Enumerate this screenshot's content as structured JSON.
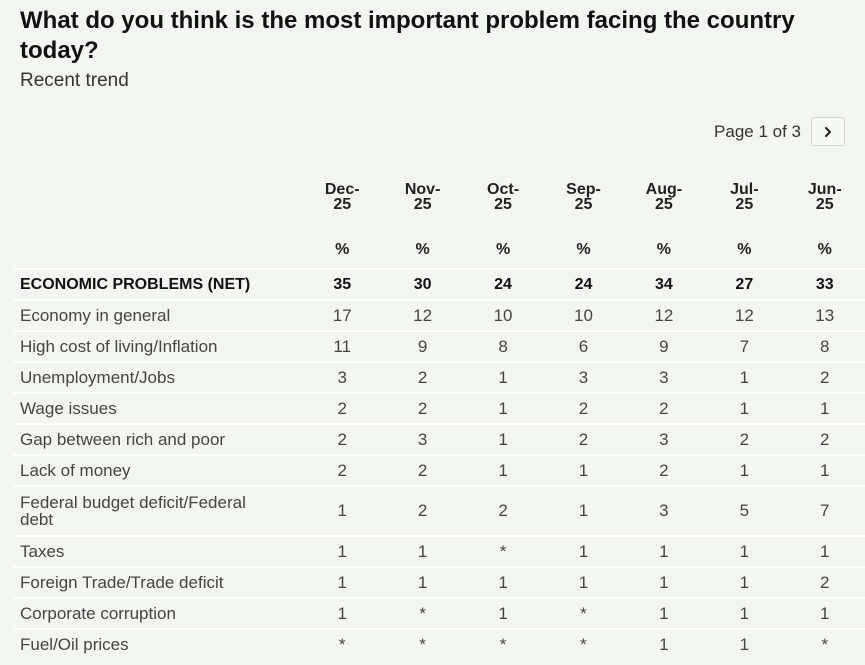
{
  "header": {
    "title": "What do you think is the most important problem facing the country today?",
    "subtitle": "Recent trend"
  },
  "pager": {
    "text": "Page 1 of 3",
    "next_icon": "chevron-right-icon"
  },
  "table": {
    "columns": [
      {
        "line1": "Dec-",
        "line2": "25"
      },
      {
        "line1": "Nov-",
        "line2": "25"
      },
      {
        "line1": "Oct-",
        "line2": "25"
      },
      {
        "line1": "Sep-",
        "line2": "25"
      },
      {
        "line1": "Aug-",
        "line2": "25"
      },
      {
        "line1": "Jul-",
        "line2": "25"
      },
      {
        "line1": "Jun-",
        "line2": "25"
      }
    ],
    "unit": "%",
    "rows": [
      {
        "label": "ECONOMIC PROBLEMS (NET)",
        "values": [
          "35",
          "30",
          "24",
          "24",
          "34",
          "27",
          "33"
        ],
        "net": true
      },
      {
        "label": "Economy in general",
        "values": [
          "17",
          "12",
          "10",
          "10",
          "12",
          "12",
          "13"
        ]
      },
      {
        "label": "High cost of living/Inflation",
        "values": [
          "11",
          "9",
          "8",
          "6",
          "9",
          "7",
          "8"
        ]
      },
      {
        "label": "Unemployment/Jobs",
        "values": [
          "3",
          "2",
          "1",
          "3",
          "3",
          "1",
          "2"
        ]
      },
      {
        "label": "Wage issues",
        "values": [
          "2",
          "2",
          "1",
          "2",
          "2",
          "1",
          "1"
        ]
      },
      {
        "label": "Gap between rich and poor",
        "values": [
          "2",
          "3",
          "1",
          "2",
          "3",
          "2",
          "2"
        ]
      },
      {
        "label": "Lack of money",
        "values": [
          "2",
          "2",
          "1",
          "1",
          "2",
          "1",
          "1"
        ]
      },
      {
        "label": "Federal budget deficit/Federal debt",
        "values": [
          "1",
          "2",
          "2",
          "1",
          "3",
          "5",
          "7"
        ],
        "tall": true
      },
      {
        "label": "Taxes",
        "values": [
          "1",
          "1",
          "*",
          "1",
          "1",
          "1",
          "1"
        ]
      },
      {
        "label": "Foreign Trade/Trade deficit",
        "values": [
          "1",
          "1",
          "1",
          "1",
          "1",
          "1",
          "2"
        ]
      },
      {
        "label": "Corporate corruption",
        "values": [
          "1",
          "*",
          "1",
          "*",
          "1",
          "1",
          "1"
        ]
      },
      {
        "label": "Fuel/Oil prices",
        "values": [
          "*",
          "*",
          "*",
          "*",
          "1",
          "1",
          "*"
        ]
      }
    ]
  }
}
